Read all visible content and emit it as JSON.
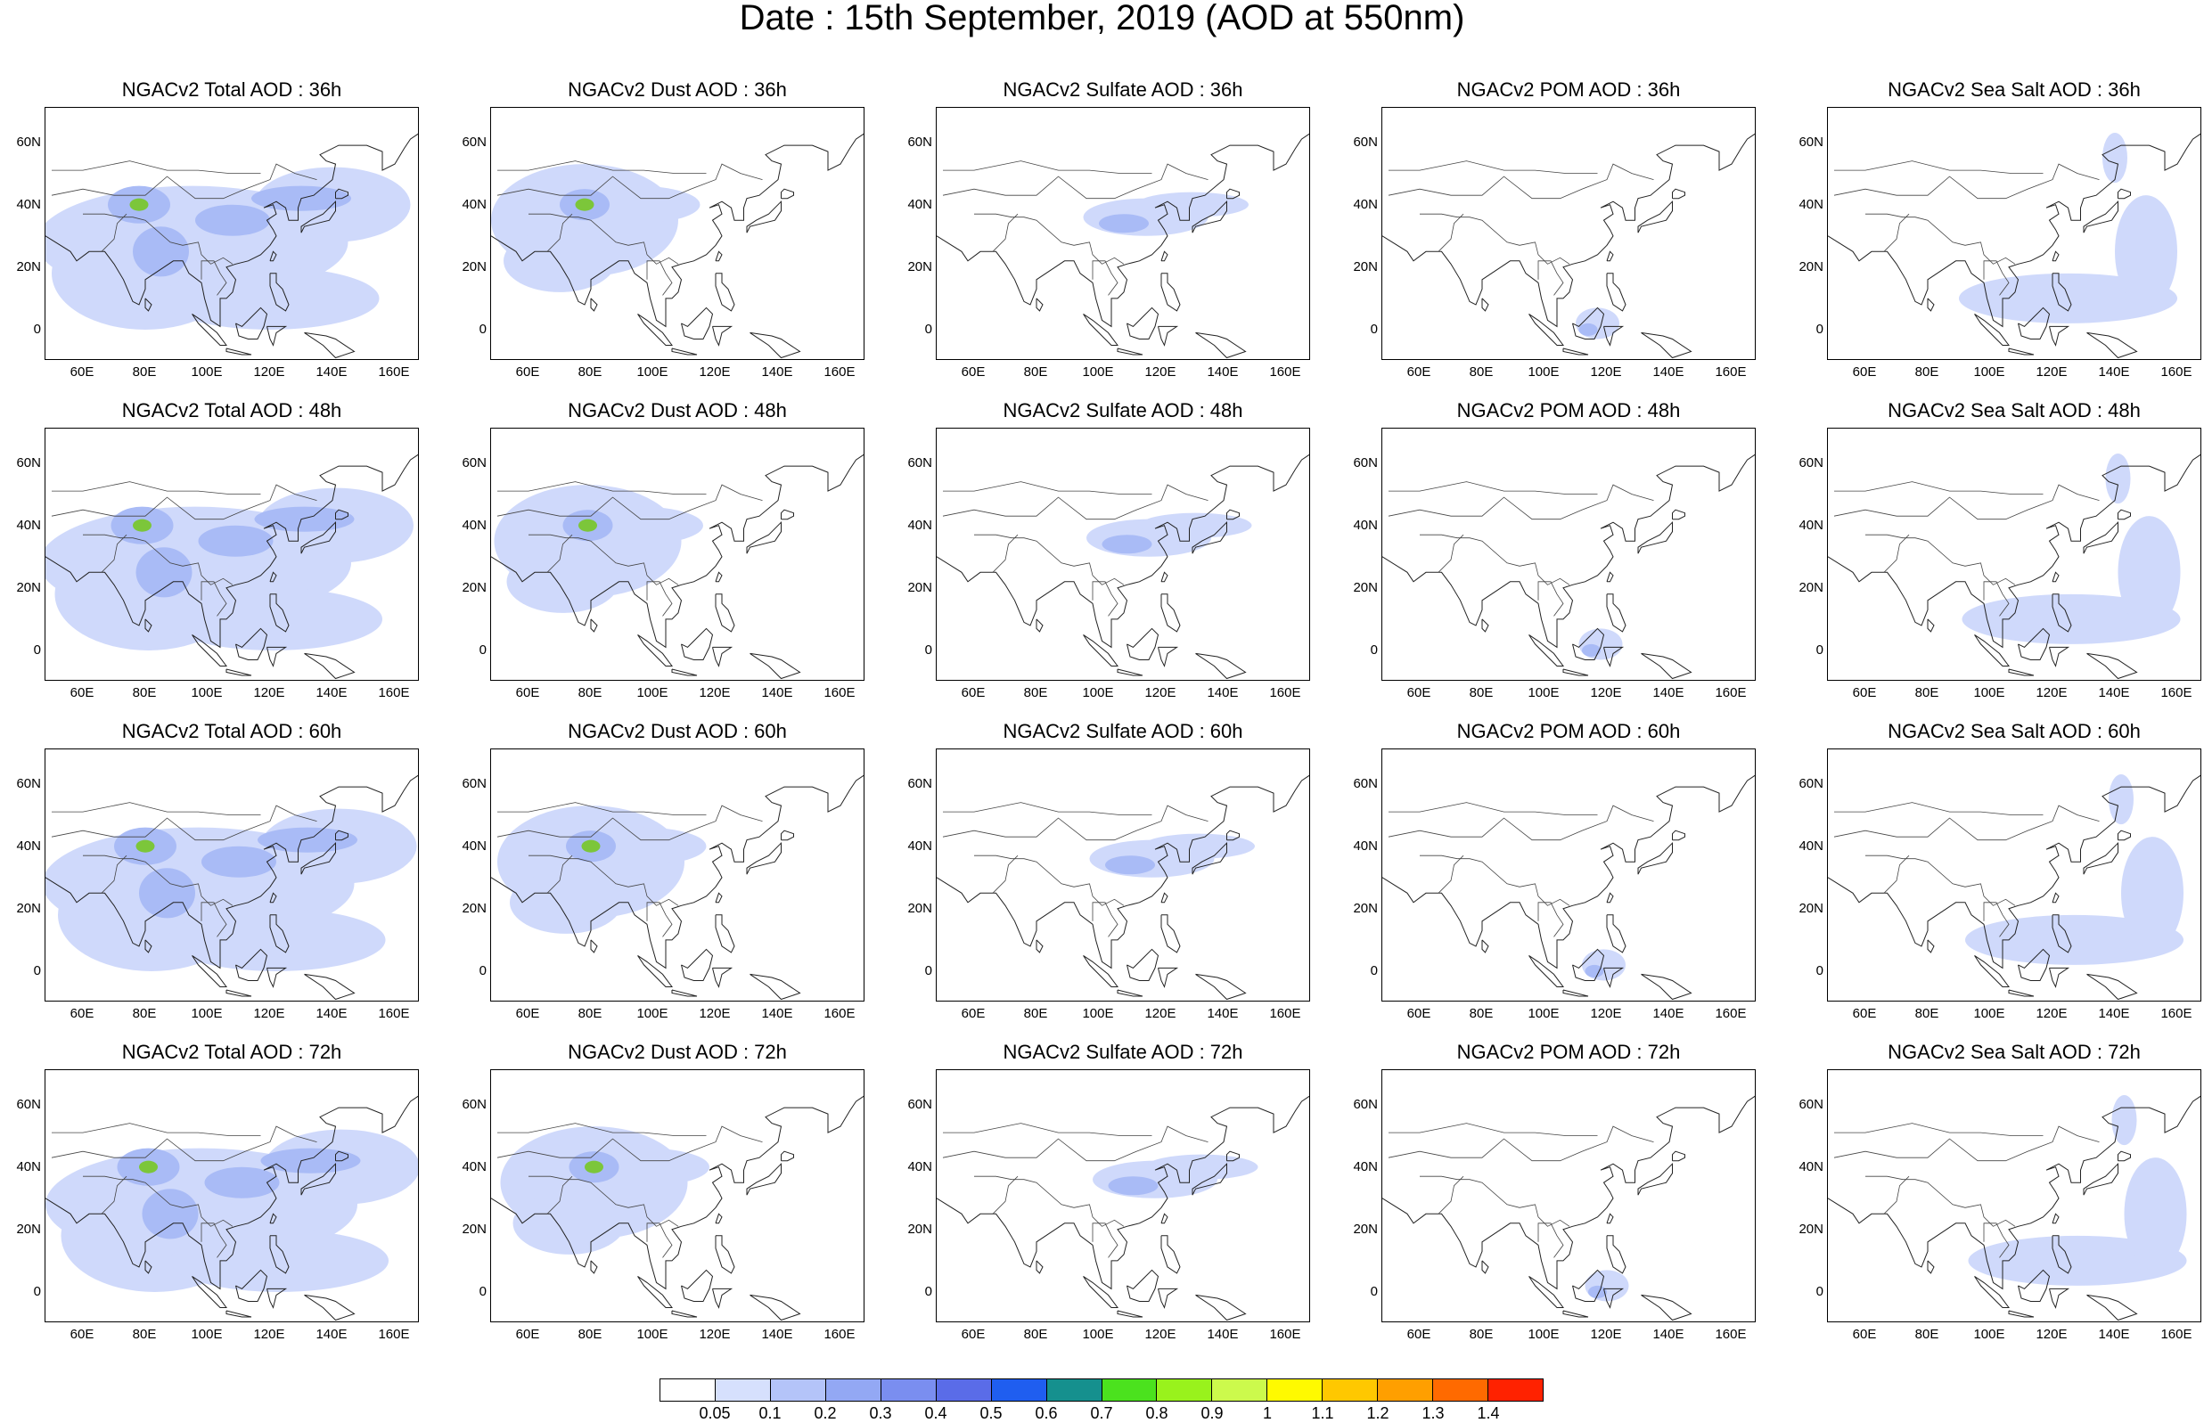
{
  "title": "Date : 15th September, 2019 (AOD at 550nm)",
  "colors": {
    "light": "#cfd9fb",
    "mid": "#a9bbf6",
    "dark": "#8a9ef0",
    "hot": "#7cc63a"
  },
  "axis": {
    "lat_ticks": [
      "60N",
      "40N",
      "20N",
      "0"
    ],
    "lon_ticks": [
      "60E",
      "80E",
      "100E",
      "120E",
      "140E",
      "160E"
    ]
  },
  "panels": [
    [
      "NGACv2 Total AOD : 36h",
      "NGACv2 Dust AOD : 36h",
      "NGACv2 Sulfate AOD : 36h",
      "NGACv2 POM AOD : 36h",
      "NGACv2 Sea Salt AOD : 36h"
    ],
    [
      "NGACv2 Total AOD : 48h",
      "NGACv2 Dust AOD : 48h",
      "NGACv2 Sulfate AOD : 48h",
      "NGACv2 POM AOD : 48h",
      "NGACv2 Sea Salt AOD : 48h"
    ],
    [
      "NGACv2 Total AOD : 60h",
      "NGACv2 Dust AOD : 60h",
      "NGACv2 Sulfate AOD : 60h",
      "NGACv2 POM AOD : 60h",
      "NGACv2 Sea Salt AOD : 60h"
    ],
    [
      "NGACv2 Total AOD : 72h",
      "NGACv2 Dust AOD : 72h",
      "NGACv2 Sulfate AOD : 72h",
      "NGACv2 POM AOD : 72h",
      "NGACv2 Sea Salt  AOD : 72h"
    ]
  ],
  "colorbar": {
    "labels": [
      "0.05",
      "0.1",
      "0.2",
      "0.3",
      "0.4",
      "0.5",
      "0.6",
      "0.7",
      "0.8",
      "0.9",
      "1",
      "1.1",
      "1.2",
      "1.3",
      "1.4"
    ],
    "colors": [
      "#ffffff",
      "#d6e0fd",
      "#b4c4f9",
      "#93a8f4",
      "#7a8ef0",
      "#5a6ce8",
      "#1f5ef0",
      "#15908e",
      "#4be21e",
      "#99f21c",
      "#ccfa4c",
      "#fffa00",
      "#ffc800",
      "#ff9f00",
      "#ff6a00",
      "#ff2200"
    ]
  }
}
